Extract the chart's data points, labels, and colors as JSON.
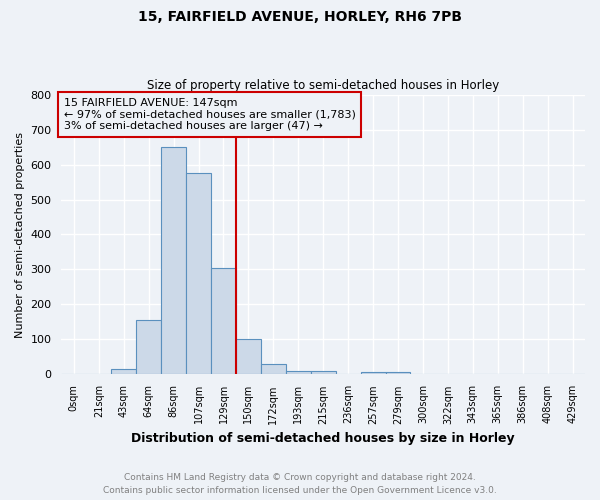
{
  "title1": "15, FAIRFIELD AVENUE, HORLEY, RH6 7PB",
  "title2": "Size of property relative to semi-detached houses in Horley",
  "xlabel": "Distribution of semi-detached houses by size in Horley",
  "ylabel": "Number of semi-detached properties",
  "bar_labels": [
    "0sqm",
    "21sqm",
    "43sqm",
    "64sqm",
    "86sqm",
    "107sqm",
    "129sqm",
    "150sqm",
    "172sqm",
    "193sqm",
    "215sqm",
    "236sqm",
    "257sqm",
    "279sqm",
    "300sqm",
    "322sqm",
    "343sqm",
    "365sqm",
    "386sqm",
    "408sqm",
    "429sqm"
  ],
  "bar_values": [
    0,
    0,
    15,
    155,
    650,
    575,
    305,
    100,
    30,
    10,
    10,
    0,
    8,
    8,
    0,
    0,
    0,
    0,
    0,
    0,
    0
  ],
  "bar_color": "#ccd9e8",
  "bar_edge_color": "#5a90be",
  "property_line_x": 6.5,
  "annotation_title": "15 FAIRFIELD AVENUE: 147sqm",
  "annotation_line1": "← 97% of semi-detached houses are smaller (1,783)",
  "annotation_line2": "3% of semi-detached houses are larger (47) →",
  "property_line_color": "#cc0000",
  "annotation_box_color": "#cc0000",
  "ylim": [
    0,
    800
  ],
  "yticks": [
    0,
    100,
    200,
    300,
    400,
    500,
    600,
    700,
    800
  ],
  "footer1": "Contains HM Land Registry data © Crown copyright and database right 2024.",
  "footer2": "Contains public sector information licensed under the Open Government Licence v3.0.",
  "background_color": "#eef2f7",
  "grid_color": "#ffffff"
}
